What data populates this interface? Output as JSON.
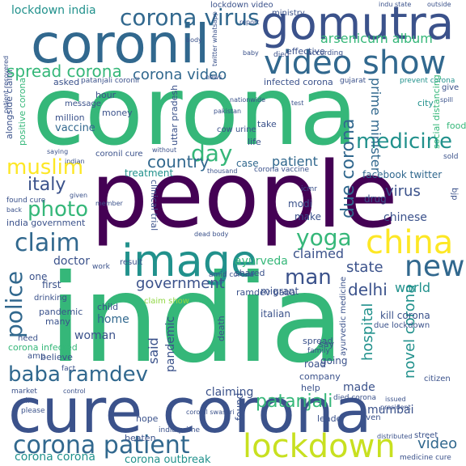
{
  "wordcloud": {
    "palette": {
      "dark_purple": "#440154",
      "deep_blue": "#3b528b",
      "slate_blue": "#31688e",
      "teal": "#21918c",
      "green": "#35b779",
      "lime": "#90d743",
      "yellow": "#c8e020",
      "bright_yellow": "#fde725"
    },
    "words": {
      "corona": "corona",
      "people": "people",
      "india": "india",
      "cure_corona": "cure corona",
      "coronil": "coronil",
      "gomutra": "gomutra",
      "image": "image",
      "china": "china",
      "video_show": "video show",
      "corona_virus": "corona virus",
      "lockdown": "lockdown",
      "corona_patient": "corona patient",
      "muslim": "muslim",
      "medicine": "medicine",
      "claim": "claim",
      "police": "police",
      "baba_ramdev": "baba ramdev",
      "new": "new",
      "yoga": "yoga",
      "man": "man",
      "italy": "italy",
      "photo": "photo",
      "day": "day",
      "country": "country",
      "spread_corona": "spread corona",
      "corona_video": "corona video",
      "patanjali": "patanjali",
      "arsenicum_album": "arsenicum album",
      "lockdown_india": "lockdown india",
      "corona_outbreak": "corona outbreak",
      "corona_corona": "corona corona",
      "due_corona": "due corona",
      "prime_minister": "prime minister",
      "government": "government",
      "delhi": "delhi",
      "state": "state",
      "world": "world",
      "hospital": "hospital",
      "novel_corona": "novel corona",
      "facebook_twitter": "facebook twitter",
      "virus": "virus",
      "chinese": "chinese",
      "ayurveda": "ayurveda",
      "doctor": "doctor",
      "claimed": "claimed",
      "patient": "patient",
      "woman": "woman",
      "video": "video",
      "mumbai": "mumbai",
      "made": "made",
      "said": "said",
      "pandemic": "pandemic",
      "found": "found",
      "claiming": "claiming",
      "home": "home",
      "treatment": "treatment",
      "drug": "drug",
      "modi": "modi",
      "make": "make",
      "first": "first",
      "one": "one",
      "vaccine": "vaccine",
      "money": "money",
      "case": "case",
      "asked": "asked",
      "hour": "hour",
      "million": "million",
      "message": "message",
      "life": "life",
      "take": "take",
      "food": "food",
      "city": "city",
      "gujarat": "gujarat",
      "cow_urine": "cow urine",
      "uttar_pradesh": "uttar pradesh",
      "infected_corona": "infected corona",
      "patanjali_coronil": "patanjali coronil",
      "ministry": "ministry",
      "lockdown_video": "lockdown video",
      "effective": "effective",
      "died": "died",
      "report": "report",
      "body": "body",
      "baby": "baby",
      "according": "according",
      "prevent_corona": "prevent corona",
      "social_distancing": "social distancing",
      "kill_corona": "kill corona",
      "ayurvedic_medicine": "ayurvedic medicine",
      "due_lockdown": "due lockdown",
      "italian": "italian",
      "migrant": "migrant",
      "ramdev_baba": "ramdev baba",
      "claim_show": "claim show",
      "child": "child",
      "pandemic_small": "pandemic",
      "many": "many",
      "need": "need",
      "drinking": "drinking",
      "death": "death",
      "spread": "spread",
      "road": "road",
      "say": "say",
      "going": "going",
      "company": "company",
      "family": "family",
      "help": "help",
      "died_corona": "died corona",
      "hope": "hope",
      "beaten": "beaten",
      "leader": "leader",
      "even": "even",
      "street": "street",
      "medicine_cure": "medicine cure",
      "distributed": "distributed",
      "citizen": "citizen",
      "issued": "issued",
      "president": "president",
      "market": "market",
      "amp": "amp",
      "believe": "believe",
      "corona_infected": "corona infected",
      "india_government": "india government",
      "found_cure": "found cure",
      "coronil_cure": "coronil cure",
      "without": "without",
      "dead_body": "dead body",
      "icmr": "icmr",
      "bjp": "bjp",
      "alongside_claim": "alongside claim",
      "positive_corona": "positive corona",
      "india_prime": "india prime",
      "coronil_swasari": "coronil swasari",
      "indian": "indian",
      "fact": "fact",
      "back": "back",
      "given": "given",
      "member": "member",
      "saying": "saying",
      "work": "work",
      "result": "result",
      "shared": "shared",
      "clinical_trial": "clinical trial",
      "amid_corona": "amid corona",
      "corona_vaccine": "corona vaccine",
      "thousand": "thousand",
      "pakistan": "pakistan",
      "nationwide": "nationwide",
      "test": "test",
      "give": "give",
      "spill": "spill",
      "sold": "sold",
      "indu_state": "indu state",
      "outside": "outside",
      "twitter_whatsapp": "twitter whatsapp",
      "news": "news",
      "control": "control",
      "patient_recovered": "patient recovered",
      "please": "please",
      "air": "air"
    }
  }
}
